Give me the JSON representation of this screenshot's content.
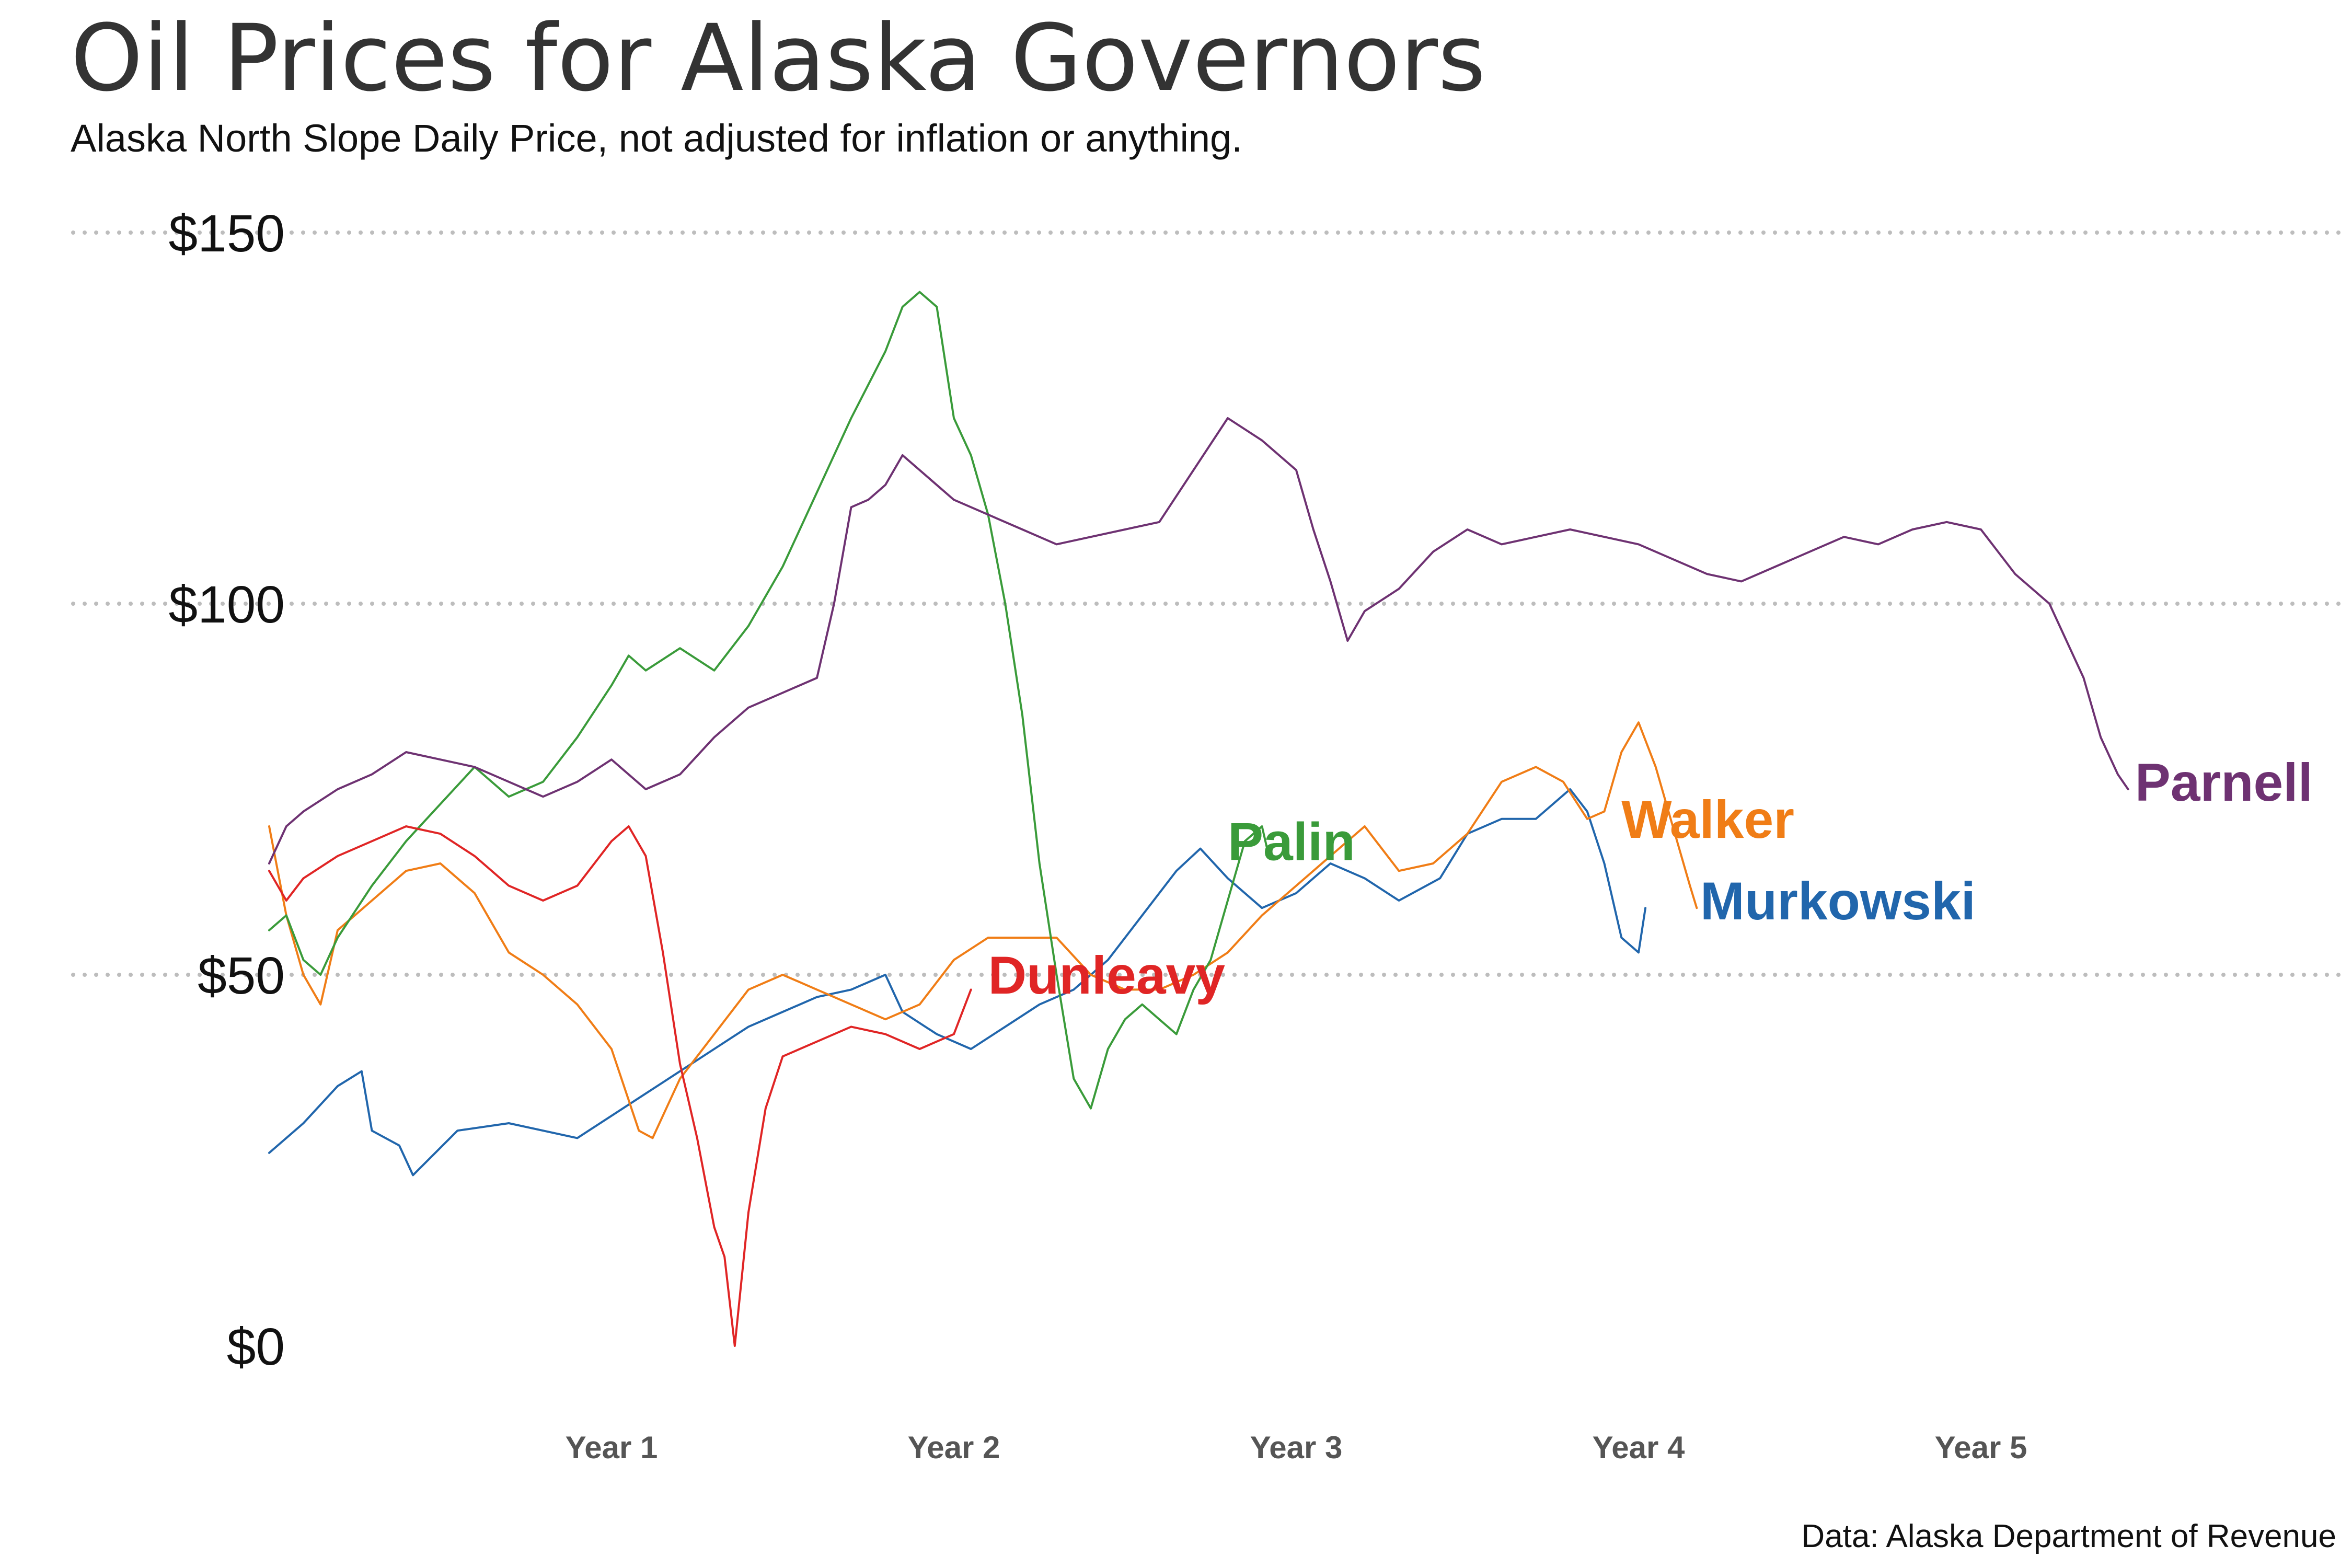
{
  "chart_data": {
    "type": "line",
    "title": "Oil Prices for Alaska Governors",
    "subtitle": "Alaska North Slope Daily Price, not adjusted for inflation or anything.",
    "caption": "Data: Alaska Department of Revenue",
    "xlabel": "",
    "ylabel": "",
    "xlim": [
      0,
      6
    ],
    "ylim": [
      0,
      150
    ],
    "x_ticks": [
      {
        "value": 1,
        "label": "Year 1"
      },
      {
        "value": 2,
        "label": "Year 2"
      },
      {
        "value": 3,
        "label": "Year 3"
      },
      {
        "value": 4,
        "label": "Year 4"
      },
      {
        "value": 5,
        "label": "Year 5"
      }
    ],
    "y_ticks": [
      {
        "value": 0,
        "label": "$0"
      },
      {
        "value": 50,
        "label": "$50"
      },
      {
        "value": 100,
        "label": "$100"
      },
      {
        "value": 150,
        "label": "$150"
      }
    ],
    "grid": {
      "y_major": true,
      "x_major": false,
      "style": "dotted"
    },
    "legend": "direct labels at line ends",
    "series": [
      {
        "name": "Murkowski",
        "color": "#2166ac",
        "label_anchor": [
          4.18,
          60
        ],
        "points": [
          [
            0.0,
            26
          ],
          [
            0.1,
            30
          ],
          [
            0.2,
            35
          ],
          [
            0.27,
            37
          ],
          [
            0.3,
            29
          ],
          [
            0.38,
            27
          ],
          [
            0.42,
            23
          ],
          [
            0.55,
            29
          ],
          [
            0.7,
            30
          ],
          [
            0.8,
            29
          ],
          [
            0.9,
            28
          ],
          [
            1.0,
            31
          ],
          [
            1.1,
            34
          ],
          [
            1.2,
            37
          ],
          [
            1.3,
            40
          ],
          [
            1.4,
            43
          ],
          [
            1.5,
            45
          ],
          [
            1.6,
            47
          ],
          [
            1.7,
            48
          ],
          [
            1.8,
            50
          ],
          [
            1.85,
            45
          ],
          [
            1.95,
            42
          ],
          [
            2.05,
            40
          ],
          [
            2.15,
            43
          ],
          [
            2.25,
            46
          ],
          [
            2.35,
            48
          ],
          [
            2.45,
            52
          ],
          [
            2.55,
            58
          ],
          [
            2.65,
            64
          ],
          [
            2.72,
            67
          ],
          [
            2.8,
            63
          ],
          [
            2.9,
            59
          ],
          [
            3.0,
            61
          ],
          [
            3.1,
            65
          ],
          [
            3.2,
            63
          ],
          [
            3.3,
            60
          ],
          [
            3.42,
            63
          ],
          [
            3.5,
            69
          ],
          [
            3.6,
            71
          ],
          [
            3.7,
            71
          ],
          [
            3.8,
            75
          ],
          [
            3.85,
            72
          ],
          [
            3.9,
            65
          ],
          [
            3.95,
            55
          ],
          [
            4.0,
            53
          ],
          [
            4.02,
            59
          ]
        ]
      },
      {
        "name": "Walker",
        "color": "#f07d16",
        "label_anchor": [
          3.95,
          71
        ],
        "points": [
          [
            0.0,
            70
          ],
          [
            0.05,
            58
          ],
          [
            0.1,
            50
          ],
          [
            0.15,
            46
          ],
          [
            0.2,
            56
          ],
          [
            0.3,
            60
          ],
          [
            0.4,
            64
          ],
          [
            0.5,
            65
          ],
          [
            0.6,
            61
          ],
          [
            0.7,
            53
          ],
          [
            0.8,
            50
          ],
          [
            0.9,
            46
          ],
          [
            1.0,
            40
          ],
          [
            1.08,
            29
          ],
          [
            1.12,
            28
          ],
          [
            1.2,
            36
          ],
          [
            1.3,
            42
          ],
          [
            1.4,
            48
          ],
          [
            1.5,
            50
          ],
          [
            1.6,
            48
          ],
          [
            1.7,
            46
          ],
          [
            1.8,
            44
          ],
          [
            1.9,
            46
          ],
          [
            2.0,
            52
          ],
          [
            2.1,
            55
          ],
          [
            2.2,
            55
          ],
          [
            2.3,
            55
          ],
          [
            2.4,
            50
          ],
          [
            2.5,
            48
          ],
          [
            2.6,
            48
          ],
          [
            2.7,
            50
          ],
          [
            2.8,
            53
          ],
          [
            2.9,
            58
          ],
          [
            3.0,
            62
          ],
          [
            3.1,
            66
          ],
          [
            3.2,
            70
          ],
          [
            3.3,
            64
          ],
          [
            3.4,
            65
          ],
          [
            3.5,
            69
          ],
          [
            3.6,
            76
          ],
          [
            3.7,
            78
          ],
          [
            3.78,
            76
          ],
          [
            3.85,
            71
          ],
          [
            3.9,
            72
          ],
          [
            3.95,
            80
          ],
          [
            4.0,
            84
          ],
          [
            4.05,
            78
          ],
          [
            4.1,
            70
          ],
          [
            4.15,
            62
          ],
          [
            4.17,
            59
          ]
        ]
      },
      {
        "name": "Palin",
        "color": "#3a9b3a",
        "label_anchor": [
          2.8,
          68
        ],
        "points": [
          [
            0.0,
            56
          ],
          [
            0.05,
            58
          ],
          [
            0.1,
            52
          ],
          [
            0.15,
            50
          ],
          [
            0.2,
            55
          ],
          [
            0.3,
            62
          ],
          [
            0.4,
            68
          ],
          [
            0.5,
            73
          ],
          [
            0.6,
            78
          ],
          [
            0.7,
            74
          ],
          [
            0.8,
            76
          ],
          [
            0.9,
            82
          ],
          [
            1.0,
            89
          ],
          [
            1.05,
            93
          ],
          [
            1.1,
            91
          ],
          [
            1.2,
            94
          ],
          [
            1.3,
            91
          ],
          [
            1.4,
            97
          ],
          [
            1.5,
            105
          ],
          [
            1.6,
            115
          ],
          [
            1.7,
            125
          ],
          [
            1.8,
            134
          ],
          [
            1.85,
            140
          ],
          [
            1.9,
            142
          ],
          [
            1.95,
            140
          ],
          [
            2.0,
            125
          ],
          [
            2.05,
            120
          ],
          [
            2.1,
            112
          ],
          [
            2.15,
            100
          ],
          [
            2.2,
            85
          ],
          [
            2.25,
            65
          ],
          [
            2.3,
            50
          ],
          [
            2.35,
            36
          ],
          [
            2.4,
            32
          ],
          [
            2.45,
            40
          ],
          [
            2.5,
            44
          ],
          [
            2.55,
            46
          ],
          [
            2.6,
            44
          ],
          [
            2.65,
            42
          ],
          [
            2.7,
            48
          ],
          [
            2.75,
            52
          ],
          [
            2.8,
            60
          ],
          [
            2.85,
            68
          ],
          [
            2.9,
            70
          ],
          [
            2.92,
            66
          ]
        ]
      },
      {
        "name": "Parnell",
        "color": "#6e3272",
        "label_anchor": [
          5.45,
          76
        ],
        "points": [
          [
            0.0,
            65
          ],
          [
            0.05,
            70
          ],
          [
            0.1,
            72
          ],
          [
            0.2,
            75
          ],
          [
            0.3,
            77
          ],
          [
            0.4,
            80
          ],
          [
            0.5,
            79
          ],
          [
            0.6,
            78
          ],
          [
            0.7,
            76
          ],
          [
            0.8,
            74
          ],
          [
            0.9,
            76
          ],
          [
            1.0,
            79
          ],
          [
            1.1,
            75
          ],
          [
            1.2,
            77
          ],
          [
            1.3,
            82
          ],
          [
            1.4,
            86
          ],
          [
            1.5,
            88
          ],
          [
            1.6,
            90
          ],
          [
            1.65,
            100
          ],
          [
            1.7,
            113
          ],
          [
            1.75,
            114
          ],
          [
            1.8,
            116
          ],
          [
            1.85,
            120
          ],
          [
            1.9,
            118
          ],
          [
            2.0,
            114
          ],
          [
            2.1,
            112
          ],
          [
            2.2,
            110
          ],
          [
            2.3,
            108
          ],
          [
            2.4,
            109
          ],
          [
            2.5,
            110
          ],
          [
            2.6,
            111
          ],
          [
            2.7,
            118
          ],
          [
            2.8,
            125
          ],
          [
            2.9,
            122
          ],
          [
            3.0,
            118
          ],
          [
            3.05,
            110
          ],
          [
            3.1,
            103
          ],
          [
            3.15,
            95
          ],
          [
            3.2,
            99
          ],
          [
            3.3,
            102
          ],
          [
            3.4,
            107
          ],
          [
            3.5,
            110
          ],
          [
            3.6,
            108
          ],
          [
            3.7,
            109
          ],
          [
            3.8,
            110
          ],
          [
            3.9,
            109
          ],
          [
            4.0,
            108
          ],
          [
            4.1,
            106
          ],
          [
            4.2,
            104
          ],
          [
            4.3,
            103
          ],
          [
            4.4,
            105
          ],
          [
            4.5,
            107
          ],
          [
            4.6,
            109
          ],
          [
            4.7,
            108
          ],
          [
            4.8,
            110
          ],
          [
            4.9,
            111
          ],
          [
            5.0,
            110
          ],
          [
            5.1,
            104
          ],
          [
            5.2,
            100
          ],
          [
            5.3,
            90
          ],
          [
            5.35,
            82
          ],
          [
            5.4,
            77
          ],
          [
            5.43,
            75
          ]
        ]
      },
      {
        "name": "Dunleavy",
        "color": "#e02525",
        "label_anchor": [
          2.1,
          50
        ],
        "points": [
          [
            0.0,
            64
          ],
          [
            0.05,
            60
          ],
          [
            0.1,
            63
          ],
          [
            0.2,
            66
          ],
          [
            0.3,
            68
          ],
          [
            0.4,
            70
          ],
          [
            0.5,
            69
          ],
          [
            0.6,
            66
          ],
          [
            0.7,
            62
          ],
          [
            0.8,
            60
          ],
          [
            0.9,
            62
          ],
          [
            1.0,
            68
          ],
          [
            1.05,
            70
          ],
          [
            1.1,
            66
          ],
          [
            1.15,
            53
          ],
          [
            1.2,
            38
          ],
          [
            1.25,
            28
          ],
          [
            1.3,
            16
          ],
          [
            1.33,
            12
          ],
          [
            1.36,
            0
          ],
          [
            1.4,
            18
          ],
          [
            1.45,
            32
          ],
          [
            1.5,
            39
          ],
          [
            1.6,
            41
          ],
          [
            1.7,
            43
          ],
          [
            1.8,
            42
          ],
          [
            1.9,
            40
          ],
          [
            2.0,
            42
          ],
          [
            2.05,
            48
          ]
        ]
      }
    ]
  }
}
